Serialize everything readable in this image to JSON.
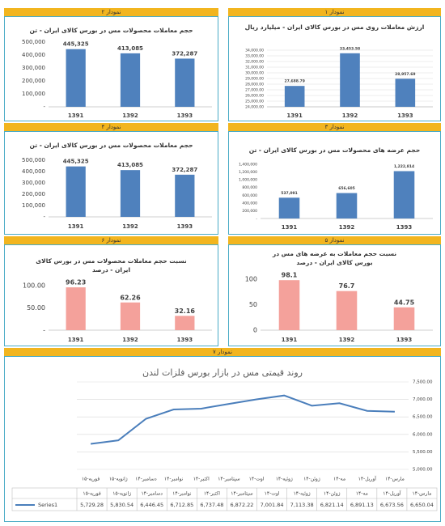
{
  "chart_data": [
    {
      "label": "نمودار ۱",
      "type": "bar",
      "title": "ارزش معاملات روی مس در بورس کالای ایران - میلیارد ریال",
      "categories": [
        "1391",
        "1392",
        "1393"
      ],
      "values": [
        27688.79,
        33453.58,
        28957.69
      ],
      "value_labels": [
        "27,688.79",
        "33,453.58",
        "28,957.69"
      ],
      "color": "#4f81bd",
      "grid": true,
      "ylim": [
        24000,
        34000
      ],
      "yticks": [
        {
          "value": 24000,
          "label": "24,000.00"
        },
        {
          "value": 25000,
          "label": "25,000.00"
        },
        {
          "value": 26000,
          "label": "26,000.00"
        },
        {
          "value": 27000,
          "label": "27,000.00"
        },
        {
          "value": 28000,
          "label": "28,000.00"
        },
        {
          "value": 29000,
          "label": "29,000.00"
        },
        {
          "value": 30000,
          "label": "30,000.00"
        },
        {
          "value": 31000,
          "label": "31,000.00"
        },
        {
          "value": 32000,
          "label": "32,000.00"
        },
        {
          "value": 33000,
          "label": "33,000.00"
        },
        {
          "value": 34000,
          "label": "34,000.00"
        }
      ]
    },
    {
      "label": "نمودار ۲",
      "type": "bar",
      "title": "حجم معاملات محصولات مس در بورس کالای ایران - تن",
      "categories": [
        "1391",
        "1392",
        "1393"
      ],
      "values": [
        445325,
        413085,
        372287
      ],
      "value_labels": [
        "445,325",
        "413,085",
        "372,287"
      ],
      "color": "#4f81bd",
      "ylim": [
        0,
        500000
      ],
      "yticks": [
        {
          "value": 0,
          "label": "-"
        },
        {
          "value": 100000,
          "label": "100,000"
        },
        {
          "value": 200000,
          "label": "200,000"
        },
        {
          "value": 300000,
          "label": "300,000"
        },
        {
          "value": 400000,
          "label": "400,000"
        },
        {
          "value": 500000,
          "label": "500,000"
        }
      ]
    },
    {
      "label": "نمودار ۳",
      "type": "bar",
      "title": "حجم عرضه های محصولات مس در بورس کالای ایران - تن",
      "categories": [
        "1391",
        "1392",
        "1393"
      ],
      "values": [
        537091,
        656605,
        1222814
      ],
      "value_labels": [
        "537,091",
        "656,605",
        "1,222,814"
      ],
      "color": "#4f81bd",
      "ylim": [
        0,
        1400000
      ],
      "yticks": [
        {
          "value": 0,
          "label": "-"
        },
        {
          "value": 200000,
          "label": "200,000"
        },
        {
          "value": 400000,
          "label": "400,000"
        },
        {
          "value": 600000,
          "label": "600,000"
        },
        {
          "value": 800000,
          "label": "800,000"
        },
        {
          "value": 1000000,
          "label": "1,000,000"
        },
        {
          "value": 1200000,
          "label": "1,200,000"
        },
        {
          "value": 1400000,
          "label": "1,400,000"
        }
      ]
    },
    {
      "label": "نمودار ۴",
      "type": "bar",
      "title": "حجم معاملات محصولات مس در بورس کالای ایران - تن",
      "categories": [
        "1391",
        "1392",
        "1393"
      ],
      "values": [
        445325,
        413085,
        372287
      ],
      "value_labels": [
        "445,325",
        "413,085",
        "372,287"
      ],
      "color": "#4f81bd",
      "ylim": [
        0,
        500000
      ],
      "yticks": [
        {
          "value": 0,
          "label": "-"
        },
        {
          "value": 100000,
          "label": "100,000"
        },
        {
          "value": 200000,
          "label": "200,000"
        },
        {
          "value": 300000,
          "label": "300,000"
        },
        {
          "value": 400000,
          "label": "400,000"
        },
        {
          "value": 500000,
          "label": "500,000"
        }
      ]
    },
    {
      "label": "نمودار ۵",
      "type": "bar",
      "title": "نسبت حجم معاملات به عرضه های مس در بورس کالای ایران - درصد",
      "categories": [
        "1391",
        "1392",
        "1393"
      ],
      "values": [
        98.1,
        76.7,
        44.75
      ],
      "color": "#f4a19b",
      "ylim": [
        0,
        100
      ],
      "yticks": [
        0,
        50,
        100
      ]
    },
    {
      "label": "نمودار ۶",
      "type": "bar",
      "title": "نسبت حجم معاملات محصولات مس در بورس کالای ایران - درصد",
      "categories": [
        "1391",
        "1392",
        "1393"
      ],
      "values": [
        96.23,
        62.26,
        32.16
      ],
      "color": "#f4a19b",
      "ylim": [
        0,
        100
      ],
      "yticks": [
        {
          "value": 0,
          "label": "-"
        },
        {
          "value": 50,
          "label": "50.00"
        },
        {
          "value": 100,
          "label": "100.00"
        }
      ]
    },
    {
      "label": "نمودار ۷",
      "type": "line",
      "title": "روند قیمتی مس در بازار بورس فلزات لندن",
      "grid": true,
      "categories": [
        "فوریه-۱۵",
        "ژانویه-۱۵",
        "دسامبر-۱۴",
        "نوامبر-۱۴",
        "اکتبر-۱۴",
        "سپتامبر-۱۴",
        "اوت-۱۴",
        "ژوئیه-۱۴",
        "ژوئن-۱۴",
        "مه-۱۴",
        "آوریل-۱۴",
        "مارس-۱۴"
      ],
      "series": [
        {
          "name": "Series1",
          "color": "#4a7ebb",
          "values": [
            5729.28,
            5830.54,
            6446.45,
            6712.85,
            6737.48,
            6872.22,
            7001.84,
            7113.38,
            6821.14,
            6891.13,
            6673.56,
            6650.04
          ],
          "value_labels": [
            "5,729.28",
            "5,830.54",
            "6,446.45",
            "6,712.85",
            "6,737.48",
            "6,872.22",
            "7,001.84",
            "7,113.38",
            "6,821.14",
            "6,891.13",
            "6,673.56",
            "6,650.04"
          ]
        }
      ],
      "ylim": [
        5000,
        7500
      ],
      "yticks": [
        {
          "value": 5000,
          "label": "5,000.00"
        },
        {
          "value": 5500,
          "label": "5,500.00"
        },
        {
          "value": 6000,
          "label": "6,000.00"
        },
        {
          "value": 6500,
          "label": "6,500.00"
        },
        {
          "value": 7000,
          "label": "7,000.00"
        },
        {
          "value": 7500,
          "label": "7,500.00"
        }
      ]
    }
  ]
}
